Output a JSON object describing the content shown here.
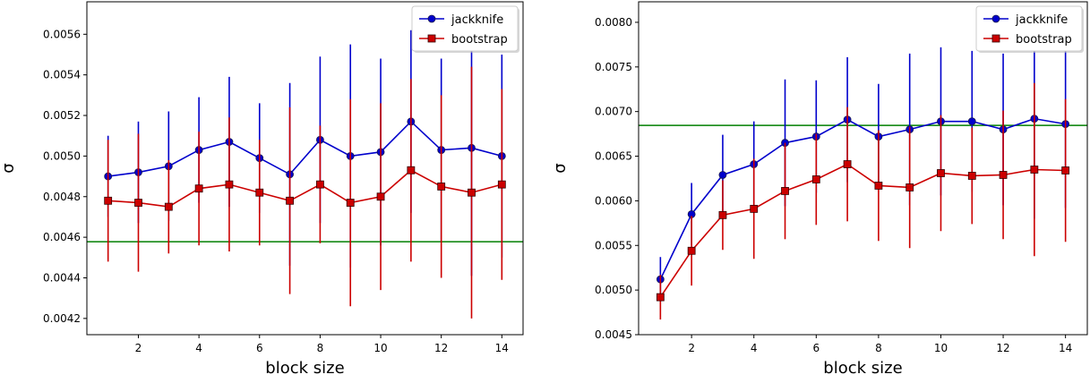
{
  "chart_data": [
    {
      "type": "line",
      "xlabel": "block size",
      "ylabel": "σ",
      "xlim": [
        0.3,
        14.7
      ],
      "ylim": [
        0.00412,
        0.00576
      ],
      "xticks": [
        2,
        4,
        6,
        8,
        10,
        12,
        14
      ],
      "yticks": [
        0.0042,
        0.0044,
        0.0046,
        0.0048,
        0.005,
        0.0052,
        0.0054,
        0.0056
      ],
      "ytick_labels": [
        "0.0042",
        "0.0044",
        "0.0046",
        "0.0048",
        "0.0050",
        "0.0052",
        "0.0054",
        "0.0056"
      ],
      "reference_line": {
        "y": 0.004578,
        "color": "#007f00"
      },
      "legend_position": "top-right",
      "series": [
        {
          "name": "jackknife",
          "color": "#0000cc",
          "marker": "circle",
          "x": [
            1,
            2,
            3,
            4,
            5,
            6,
            7,
            8,
            9,
            10,
            11,
            12,
            13,
            14
          ],
          "y": [
            0.0049,
            0.00492,
            0.00495,
            0.00503,
            0.00507,
            0.00499,
            0.00491,
            0.00508,
            0.005,
            0.00502,
            0.00517,
            0.00503,
            0.00504,
            0.005
          ],
          "err": [
            0.0002,
            0.00025,
            0.00027,
            0.00026,
            0.00032,
            0.00027,
            0.00045,
            0.00041,
            0.00055,
            0.00046,
            0.00045,
            0.00045,
            0.00063,
            0.0005
          ]
        },
        {
          "name": "bootstrap",
          "color": "#cc0000",
          "marker": "square",
          "x": [
            1,
            2,
            3,
            4,
            5,
            6,
            7,
            8,
            9,
            10,
            11,
            12,
            13,
            14
          ],
          "y": [
            0.00478,
            0.00477,
            0.00475,
            0.00484,
            0.00486,
            0.00482,
            0.00478,
            0.00486,
            0.00477,
            0.0048,
            0.00493,
            0.00485,
            0.00482,
            0.00486
          ],
          "err": [
            0.0003,
            0.00034,
            0.00023,
            0.00028,
            0.00033,
            0.00026,
            0.00046,
            0.00029,
            0.00051,
            0.00046,
            0.00045,
            0.00045,
            0.00062,
            0.00047
          ]
        }
      ]
    },
    {
      "type": "line",
      "xlabel": "block size",
      "ylabel": "σ",
      "xlim": [
        0.3,
        14.7
      ],
      "ylim": [
        0.0045,
        0.00823
      ],
      "xticks": [
        2,
        4,
        6,
        8,
        10,
        12,
        14
      ],
      "yticks": [
        0.0045,
        0.005,
        0.0055,
        0.006,
        0.0065,
        0.007,
        0.0075,
        0.008
      ],
      "ytick_labels": [
        "0.0045",
        "0.0050",
        "0.0055",
        "0.0060",
        "0.0065",
        "0.0070",
        "0.0075",
        "0.0080"
      ],
      "reference_line": {
        "y": 0.006845,
        "color": "#007f00"
      },
      "legend_position": "top-right",
      "series": [
        {
          "name": "jackknife",
          "color": "#0000cc",
          "marker": "circle",
          "x": [
            1,
            2,
            3,
            4,
            5,
            6,
            7,
            8,
            9,
            10,
            11,
            12,
            13,
            14
          ],
          "y": [
            0.00512,
            0.00585,
            0.00629,
            0.00641,
            0.00665,
            0.00672,
            0.00691,
            0.00672,
            0.0068,
            0.00689,
            0.00689,
            0.0068,
            0.00692,
            0.00686
          ],
          "err": [
            0.00025,
            0.00035,
            0.00045,
            0.00048,
            0.00071,
            0.00063,
            0.0007,
            0.00059,
            0.00085,
            0.00083,
            0.00079,
            0.00085,
            0.00112,
            0.00094
          ]
        },
        {
          "name": "bootstrap",
          "color": "#cc0000",
          "marker": "square",
          "x": [
            1,
            2,
            3,
            4,
            5,
            6,
            7,
            8,
            9,
            10,
            11,
            12,
            13,
            14
          ],
          "y": [
            0.00492,
            0.00544,
            0.00584,
            0.00591,
            0.00611,
            0.00624,
            0.00641,
            0.00617,
            0.00615,
            0.00631,
            0.00628,
            0.00629,
            0.00635,
            0.00634
          ],
          "err": [
            0.00025,
            0.00039,
            0.00039,
            0.00056,
            0.00054,
            0.00051,
            0.00064,
            0.00062,
            0.00068,
            0.00065,
            0.00054,
            0.00072,
            0.00097,
            0.0008
          ]
        }
      ]
    }
  ]
}
